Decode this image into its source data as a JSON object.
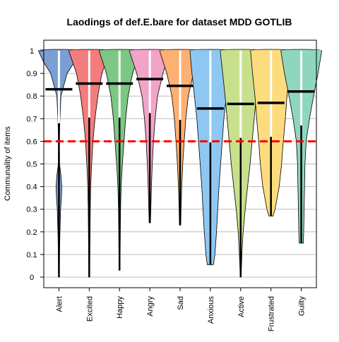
{
  "chart_data": {
    "type": "violin",
    "title": "Laodings of def.E.bare for dataset MDD GOTLIB",
    "ylabel": "Communality of items",
    "xlabel": "",
    "ylim": [
      -0.04,
      1.04
    ],
    "yticks": [
      "0",
      "0.1",
      "0.2",
      "0.3",
      "0.4",
      "0.5",
      "0.6",
      "0.7",
      "0.8",
      "0.9",
      "1"
    ],
    "grid": true,
    "threshold": {
      "value": 0.6,
      "color": "#ff0000",
      "style": "dashed"
    },
    "series": [
      {
        "name": "Alert",
        "mean": 0.83,
        "min": 0.0,
        "max": 1.0,
        "color": "#7b9fd4",
        "density": [
          [
            0.0,
            0.02
          ],
          [
            0.1,
            0.03
          ],
          [
            0.2,
            0.05
          ],
          [
            0.3,
            0.08
          ],
          [
            0.35,
            0.12
          ],
          [
            0.4,
            0.14
          ],
          [
            0.45,
            0.1
          ],
          [
            0.5,
            0.03
          ],
          [
            0.6,
            0.02
          ],
          [
            0.7,
            0.05
          ],
          [
            0.8,
            0.1
          ],
          [
            0.9,
            0.4
          ],
          [
            0.95,
            0.75
          ],
          [
            1.0,
            1.0
          ]
        ]
      },
      {
        "name": "Excited",
        "mean": 0.855,
        "min": 0.0,
        "max": 1.0,
        "color": "#f47c7c",
        "density": [
          [
            0.0,
            0.02
          ],
          [
            0.1,
            0.03
          ],
          [
            0.2,
            0.04
          ],
          [
            0.3,
            0.05
          ],
          [
            0.4,
            0.07
          ],
          [
            0.5,
            0.12
          ],
          [
            0.6,
            0.18
          ],
          [
            0.7,
            0.28
          ],
          [
            0.8,
            0.42
          ],
          [
            0.9,
            0.62
          ],
          [
            1.0,
            1.0
          ]
        ]
      },
      {
        "name": "Happy",
        "mean": 0.855,
        "min": 0.03,
        "max": 1.0,
        "color": "#7cc784",
        "density": [
          [
            0.03,
            0.02
          ],
          [
            0.1,
            0.03
          ],
          [
            0.2,
            0.04
          ],
          [
            0.3,
            0.05
          ],
          [
            0.4,
            0.08
          ],
          [
            0.5,
            0.14
          ],
          [
            0.6,
            0.22
          ],
          [
            0.7,
            0.3
          ],
          [
            0.8,
            0.42
          ],
          [
            0.9,
            0.64
          ],
          [
            1.0,
            1.0
          ]
        ]
      },
      {
        "name": "Angry",
        "mean": 0.875,
        "min": 0.24,
        "max": 1.0,
        "color": "#f2a3c8",
        "density": [
          [
            0.24,
            0.03
          ],
          [
            0.3,
            0.05
          ],
          [
            0.4,
            0.08
          ],
          [
            0.5,
            0.12
          ],
          [
            0.6,
            0.18
          ],
          [
            0.7,
            0.26
          ],
          [
            0.8,
            0.38
          ],
          [
            0.9,
            0.64
          ],
          [
            1.0,
            1.0
          ]
        ]
      },
      {
        "name": "Sad",
        "mean": 0.845,
        "min": 0.23,
        "max": 1.0,
        "color": "#fdb072",
        "density": [
          [
            0.23,
            0.03
          ],
          [
            0.3,
            0.05
          ],
          [
            0.4,
            0.08
          ],
          [
            0.5,
            0.13
          ],
          [
            0.6,
            0.2
          ],
          [
            0.7,
            0.28
          ],
          [
            0.8,
            0.4
          ],
          [
            0.9,
            0.65
          ],
          [
            1.0,
            1.0
          ]
        ]
      },
      {
        "name": "Anxious",
        "mean": 0.745,
        "min": 0.055,
        "max": 1.0,
        "color": "#8ec8f2",
        "density": [
          [
            0.055,
            0.15
          ],
          [
            0.1,
            0.22
          ],
          [
            0.2,
            0.3
          ],
          [
            0.3,
            0.36
          ],
          [
            0.4,
            0.42
          ],
          [
            0.5,
            0.5
          ],
          [
            0.6,
            0.58
          ],
          [
            0.7,
            0.66
          ],
          [
            0.8,
            0.78
          ],
          [
            0.9,
            0.9
          ],
          [
            1.0,
            1.0
          ]
        ]
      },
      {
        "name": "Active",
        "mean": 0.765,
        "min": 0.0,
        "max": 1.0,
        "color": "#c8e08c",
        "density": [
          [
            0.0,
            0.02
          ],
          [
            0.1,
            0.06
          ],
          [
            0.2,
            0.12
          ],
          [
            0.3,
            0.22
          ],
          [
            0.4,
            0.34
          ],
          [
            0.5,
            0.46
          ],
          [
            0.6,
            0.56
          ],
          [
            0.7,
            0.66
          ],
          [
            0.8,
            0.76
          ],
          [
            0.9,
            0.88
          ],
          [
            1.0,
            1.0
          ]
        ]
      },
      {
        "name": "Frustrated",
        "mean": 0.77,
        "min": 0.27,
        "max": 1.0,
        "color": "#fddc7e",
        "density": [
          [
            0.27,
            0.1
          ],
          [
            0.3,
            0.2
          ],
          [
            0.4,
            0.4
          ],
          [
            0.5,
            0.52
          ],
          [
            0.6,
            0.6
          ],
          [
            0.7,
            0.7
          ],
          [
            0.8,
            0.78
          ],
          [
            0.9,
            0.9
          ],
          [
            1.0,
            1.0
          ]
        ]
      },
      {
        "name": "Guilty",
        "mean": 0.82,
        "min": 0.15,
        "max": 1.0,
        "color": "#8fd6bf",
        "density": [
          [
            0.15,
            0.1
          ],
          [
            0.2,
            0.12
          ],
          [
            0.3,
            0.14
          ],
          [
            0.4,
            0.16
          ],
          [
            0.5,
            0.18
          ],
          [
            0.6,
            0.24
          ],
          [
            0.7,
            0.4
          ],
          [
            0.8,
            0.6
          ],
          [
            0.9,
            0.82
          ],
          [
            1.0,
            1.0
          ]
        ]
      }
    ]
  }
}
